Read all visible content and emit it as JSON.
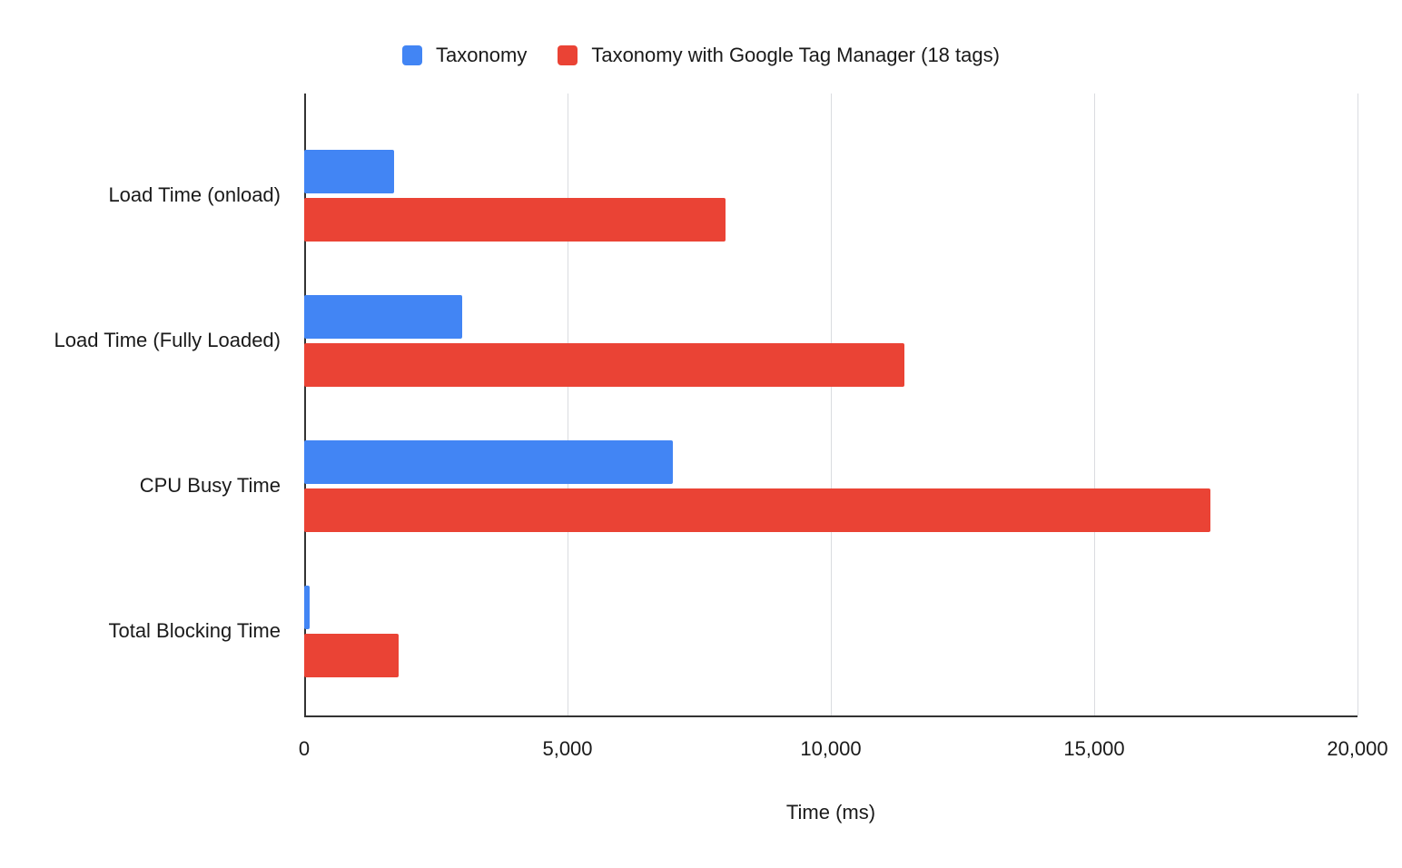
{
  "chart_data": {
    "type": "bar",
    "orientation": "horizontal",
    "title": "",
    "categories": [
      "Load Time (onload)",
      "Load Time (Fully Loaded)",
      "CPU Busy Time",
      "Total Blocking Time"
    ],
    "series": [
      {
        "name": "Taxonomy",
        "color": "#4285F4",
        "values": [
          1700,
          3000,
          7000,
          100
        ]
      },
      {
        "name": "Taxonomy with Google Tag Manager (18 tags)",
        "color": "#EA4335",
        "values": [
          8000,
          11400,
          17200,
          1800
        ]
      }
    ],
    "xlabel": "Time (ms)",
    "ylabel": "",
    "xlim": [
      0,
      20000
    ],
    "xticks": [
      0,
      5000,
      10000,
      15000,
      20000
    ],
    "xtick_labels": [
      "0",
      "5,000",
      "10,000",
      "15,000",
      "20,000"
    ],
    "grid": true,
    "legend_position": "top"
  }
}
